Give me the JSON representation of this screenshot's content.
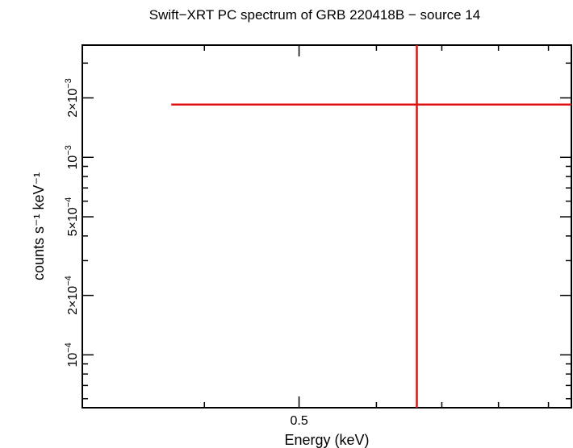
{
  "chart_data": {
    "type": "scatter",
    "title": "Swift−XRT PC spectrum of GRB 220418B − source 14",
    "xlabel": "Energy (keV)",
    "ylabel": "counts s⁻¹ keV⁻¹",
    "x_scale": "log",
    "y_scale": "log",
    "xlim": [
      0.3,
      0.95
    ],
    "ylim": [
      5.4e-05,
      0.0037
    ],
    "x_ticks": [
      {
        "value": 0.5,
        "label": "0.5"
      }
    ],
    "y_ticks": [
      {
        "value": 0.0001,
        "mant": "",
        "exp": "−4"
      },
      {
        "value": 0.0002,
        "mant": "2×",
        "exp": "−4"
      },
      {
        "value": 0.0005,
        "mant": "5×",
        "exp": "−4"
      },
      {
        "value": 0.001,
        "mant": "",
        "exp": "−3"
      },
      {
        "value": 0.002,
        "mant": "2×",
        "exp": "−3"
      }
    ],
    "series": [
      {
        "color": "#e01010",
        "points": [
          {
            "x": 0.66,
            "y": 0.00185,
            "xerr": [
              0.37,
              1.4
            ],
            "yerr": [
              4e-05,
              0.0082
            ]
          }
        ]
      }
    ]
  }
}
